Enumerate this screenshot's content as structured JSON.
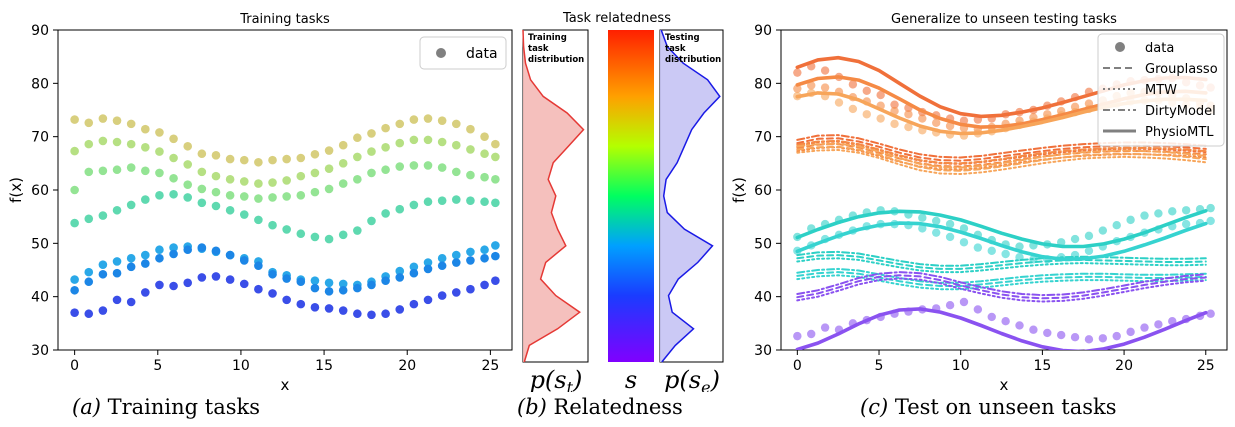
{
  "chart_data": [
    {
      "type": "scatter",
      "title": "Training tasks",
      "xlabel": "x",
      "ylabel": "f(x)",
      "xlim": [
        -1,
        26.3
      ],
      "ylim": [
        30,
        90
      ],
      "xticks": [
        0,
        5,
        10,
        15,
        20,
        25
      ],
      "yticks": [
        30,
        40,
        50,
        60,
        70,
        80,
        90
      ],
      "legend": {
        "entries": [
          "data"
        ],
        "position": "top-right"
      },
      "x": [
        0,
        0.85,
        1.7,
        2.55,
        3.4,
        4.25,
        5.1,
        5.95,
        6.8,
        7.65,
        8.5,
        9.35,
        10.2,
        11.05,
        11.9,
        12.75,
        13.6,
        14.45,
        15.3,
        16.15,
        17.0,
        17.85,
        18.7,
        19.55,
        20.4,
        21.25,
        22.1,
        22.95,
        23.8,
        24.65,
        25.3
      ],
      "series": [
        {
          "color": "#d8cf7e",
          "values": [
            73.2,
            72.6,
            73.4,
            73.0,
            72.4,
            71.4,
            70.8,
            69.6,
            68.2,
            66.8,
            66.5,
            65.8,
            65.6,
            65.2,
            65.6,
            65.8,
            66.0,
            66.7,
            67.4,
            68.4,
            69.8,
            70.6,
            71.6,
            72.4,
            73.2,
            73.4,
            73.0,
            72.4,
            71.4,
            70.0,
            68.6
          ]
        },
        {
          "color": "#b6e083",
          "values": [
            67.3,
            68.6,
            69.2,
            69.0,
            68.6,
            68.0,
            67.2,
            66.0,
            64.8,
            63.4,
            62.6,
            62.0,
            61.6,
            61.2,
            61.4,
            61.8,
            62.6,
            63.2,
            64.0,
            65.0,
            66.2,
            67.2,
            68.0,
            68.8,
            69.4,
            69.4,
            69.0,
            68.4,
            67.6,
            66.8,
            66.2
          ]
        },
        {
          "color": "#94e494",
          "values": [
            60.0,
            63.4,
            63.6,
            63.8,
            64.2,
            63.6,
            63.2,
            62.2,
            61.0,
            60.2,
            59.6,
            59.0,
            58.8,
            58.4,
            58.6,
            58.8,
            59.0,
            59.6,
            60.2,
            61.2,
            62.0,
            63.2,
            63.8,
            64.4,
            64.6,
            64.6,
            64.2,
            63.4,
            62.8,
            62.4,
            62.0
          ]
        },
        {
          "color": "#5fd9b0",
          "values": [
            53.8,
            54.6,
            55.2,
            56.2,
            57.2,
            58.2,
            59.0,
            59.2,
            58.6,
            57.6,
            57.0,
            56.2,
            55.4,
            54.4,
            53.4,
            52.6,
            51.8,
            51.2,
            50.8,
            51.6,
            52.4,
            54.2,
            55.6,
            56.4,
            57.2,
            57.8,
            58.0,
            58.2,
            58.0,
            57.8,
            57.6
          ]
        },
        {
          "color": "#2aa8e8",
          "values": [
            43.2,
            44.6,
            46.0,
            46.6,
            47.2,
            47.8,
            48.8,
            49.2,
            49.4,
            49.0,
            48.4,
            47.8,
            47.2,
            46.6,
            44.6,
            44.0,
            43.2,
            43.0,
            42.6,
            42.4,
            42.2,
            42.8,
            43.8,
            44.8,
            45.6,
            46.4,
            47.2,
            47.8,
            48.4,
            48.8,
            49.6
          ]
        },
        {
          "color": "#1c86e6",
          "values": [
            41.2,
            42.8,
            44.2,
            44.4,
            45.6,
            46.2,
            47.2,
            48.0,
            48.8,
            49.2,
            48.6,
            47.8,
            46.8,
            45.8,
            44.2,
            43.4,
            42.8,
            41.6,
            41.0,
            41.2,
            41.6,
            42.2,
            43.0,
            43.6,
            44.4,
            45.2,
            45.8,
            46.4,
            46.8,
            47.2,
            47.6
          ]
        },
        {
          "color": "#3a4ee8",
          "values": [
            37.0,
            36.8,
            37.4,
            39.4,
            39.0,
            40.8,
            42.2,
            42.0,
            42.6,
            43.6,
            43.8,
            43.2,
            42.4,
            41.4,
            40.6,
            39.4,
            38.6,
            38.0,
            37.8,
            37.4,
            36.8,
            36.6,
            36.8,
            37.6,
            38.6,
            39.4,
            40.2,
            40.8,
            41.4,
            42.2,
            43.0
          ]
        }
      ]
    },
    {
      "type": "area",
      "title": "Task relatedness",
      "panels": [
        {
          "label": "Training task distribution",
          "axis_label": "p(s_t)",
          "color": "#e53935",
          "fill": "#f4b9b6",
          "s": [
            0.0,
            0.05,
            0.1,
            0.15,
            0.2,
            0.25,
            0.3,
            0.35,
            0.4,
            0.45,
            0.5,
            0.55,
            0.6,
            0.65,
            0.7,
            0.75,
            0.8,
            0.85,
            0.9,
            0.95,
            1.0
          ],
          "density": [
            0.02,
            0.1,
            0.55,
            0.9,
            0.52,
            0.28,
            0.36,
            0.68,
            0.55,
            0.45,
            0.52,
            0.4,
            0.48,
            0.72,
            0.96,
            0.7,
            0.32,
            0.12,
            0.04,
            0.01,
            0.0
          ]
        },
        {
          "label": "Testing task distribution",
          "axis_label": "p(s_e)",
          "color": "#1a1ae6",
          "fill": "#c5c3f4",
          "s": [
            0.0,
            0.05,
            0.1,
            0.15,
            0.2,
            0.25,
            0.3,
            0.35,
            0.4,
            0.45,
            0.5,
            0.55,
            0.6,
            0.65,
            0.7,
            0.75,
            0.8,
            0.85,
            0.9,
            0.95,
            1.0
          ],
          "density": [
            0.03,
            0.25,
            0.55,
            0.2,
            0.14,
            0.3,
            0.62,
            0.86,
            0.4,
            0.12,
            0.06,
            0.1,
            0.28,
            0.4,
            0.52,
            0.72,
            0.98,
            0.78,
            0.38,
            0.12,
            0.02
          ]
        }
      ],
      "colorbar_label": "s"
    },
    {
      "type": "line",
      "title": "Generalize to unseen testing tasks",
      "xlabel": "x",
      "ylabel": "f(x)",
      "xlim": [
        -1,
        26.3
      ],
      "ylim": [
        30,
        90
      ],
      "xticks": [
        0,
        5,
        10,
        15,
        20,
        25
      ],
      "yticks": [
        30,
        40,
        50,
        60,
        70,
        80,
        90
      ],
      "legend": {
        "entries": [
          "data",
          "Grouplasso",
          "MTW",
          "DirtyModel",
          "PhysioMTL"
        ],
        "position": "top-right"
      },
      "x": [
        0,
        1.25,
        2.5,
        3.75,
        5,
        6.25,
        7.5,
        8.75,
        10,
        11.25,
        12.5,
        13.75,
        15,
        16.25,
        17.5,
        18.75,
        20,
        21.25,
        22.5,
        23.75,
        25
      ],
      "points_x": [
        0,
        0.85,
        1.7,
        2.55,
        3.4,
        4.25,
        5.1,
        5.95,
        6.8,
        7.65,
        8.5,
        9.35,
        10.2,
        11.05,
        11.9,
        12.75,
        13.6,
        14.45,
        15.3,
        16.15,
        17.0,
        17.85,
        18.7,
        19.55,
        20.4,
        21.25,
        22.1,
        22.95,
        23.8,
        24.65,
        25.3
      ],
      "tasks": [
        {
          "color": "#f0703a",
          "physio": [
            83.0,
            84.4,
            84.8,
            84.1,
            82.4,
            80.0,
            77.6,
            75.6,
            74.3,
            73.8,
            74.0,
            74.6,
            75.4,
            76.4,
            77.5,
            78.6,
            79.7,
            80.5,
            81.0,
            81.1,
            80.7
          ],
          "dirty": [
            69.4,
            70.2,
            70.3,
            69.7,
            68.7,
            67.6,
            66.7,
            66.2,
            66.1,
            66.4,
            66.9,
            67.4,
            67.9,
            68.3,
            68.6,
            68.8,
            68.9,
            68.9,
            68.8,
            68.6,
            68.3
          ],
          "points": [
            82.0,
            83.2,
            82.4,
            81.2,
            79.8,
            78.6,
            77.8,
            76.0,
            75.4,
            74.6,
            74.0,
            73.4,
            73.0,
            73.2,
            73.4,
            74.2,
            74.6,
            75.0,
            75.8,
            76.6,
            77.4,
            78.4,
            79.0,
            79.8,
            80.4,
            80.6,
            80.8,
            81.0,
            80.2,
            79.6,
            79.2
          ]
        },
        {
          "color": "#f58a45",
          "physio": [
            79.7,
            80.9,
            81.2,
            80.6,
            79.1,
            77.1,
            75.0,
            73.4,
            72.3,
            71.8,
            71.9,
            72.4,
            73.2,
            74.1,
            75.1,
            76.1,
            77.1,
            77.9,
            78.4,
            78.5,
            78.2
          ],
          "dirty": [
            68.5,
            69.1,
            69.2,
            68.6,
            67.6,
            66.5,
            65.6,
            65.1,
            65.0,
            65.3,
            65.8,
            66.4,
            66.9,
            67.3,
            67.6,
            67.8,
            67.9,
            67.9,
            67.8,
            67.6,
            67.3
          ],
          "points": [
            79.0,
            79.6,
            79.2,
            78.4,
            77.4,
            76.6,
            75.8,
            74.8,
            74.2,
            73.4,
            72.6,
            72.0,
            71.6,
            71.4,
            71.8,
            72.4,
            73.0,
            73.6,
            74.2,
            74.8,
            75.6,
            76.2,
            76.8,
            77.6,
            78.2,
            78.4,
            78.2,
            77.8,
            77.2,
            76.4,
            75.8
          ]
        },
        {
          "color": "#f7a55a",
          "physio": [
            77.5,
            78.2,
            78.0,
            76.9,
            75.2,
            73.5,
            72.0,
            71.0,
            70.6,
            70.7,
            71.2,
            71.9,
            72.7,
            73.6,
            74.6,
            75.5,
            76.2,
            76.7,
            77.0,
            77.0,
            76.8
          ],
          "dirty": [
            68.2,
            68.6,
            68.7,
            68.2,
            67.2,
            66.0,
            64.9,
            64.3,
            64.2,
            64.5,
            65.0,
            65.6,
            66.2,
            66.7,
            67.1,
            67.3,
            67.4,
            67.3,
            67.1,
            66.8,
            66.4
          ],
          "points": [
            77.6,
            78.2,
            77.6,
            76.4,
            75.2,
            74.2,
            73.4,
            72.4,
            71.8,
            71.2,
            70.8,
            70.4,
            70.2,
            70.6,
            71.0,
            71.6,
            72.2,
            72.8,
            73.4,
            74.0,
            74.6,
            75.2,
            75.8,
            76.2,
            76.6,
            76.8,
            76.8,
            76.4,
            76.0,
            75.6,
            75.0
          ]
        },
        {
          "color": "#2dd0c6",
          "physio": [
            51.1,
            52.6,
            53.9,
            55.0,
            55.7,
            56.0,
            55.9,
            55.3,
            54.4,
            53.2,
            51.9,
            50.8,
            49.9,
            49.4,
            49.4,
            49.9,
            50.8,
            52.0,
            53.4,
            54.8,
            56.1
          ],
          "dirty": [
            47.8,
            48.3,
            48.4,
            48.1,
            47.4,
            46.7,
            46.1,
            45.8,
            45.8,
            46.1,
            46.5,
            46.9,
            47.2,
            47.4,
            47.5,
            47.4,
            47.3,
            47.2,
            47.1,
            47.1,
            47.2
          ],
          "points": [
            51.2,
            52.8,
            53.6,
            54.4,
            55.2,
            55.8,
            56.2,
            56.0,
            55.4,
            54.8,
            54.2,
            53.6,
            52.8,
            51.6,
            50.6,
            49.8,
            49.4,
            49.6,
            49.8,
            50.2,
            50.8,
            51.4,
            52.4,
            53.4,
            54.4,
            55.2,
            55.6,
            56.0,
            56.2,
            56.4,
            56.6
          ]
        },
        {
          "color": "#36d3d0",
          "physio": [
            48.5,
            50.0,
            51.4,
            52.6,
            53.4,
            53.8,
            53.7,
            53.1,
            52.1,
            50.9,
            49.6,
            48.4,
            47.5,
            47.0,
            47.1,
            47.6,
            48.5,
            49.7,
            51.0,
            52.4,
            53.7
          ],
          "dirty": [
            44.5,
            45.0,
            45.2,
            44.9,
            44.2,
            43.5,
            42.9,
            42.6,
            42.6,
            42.9,
            43.3,
            43.7,
            44.0,
            44.2,
            44.3,
            44.3,
            44.2,
            44.1,
            44.1,
            44.2,
            44.3
          ],
          "points": [
            48.6,
            49.6,
            50.8,
            51.6,
            52.4,
            53.2,
            53.6,
            53.6,
            53.4,
            52.8,
            52.0,
            51.2,
            50.2,
            49.2,
            48.6,
            48.0,
            47.4,
            47.0,
            47.0,
            47.4,
            47.8,
            48.6,
            49.4,
            50.4,
            51.2,
            52.0,
            52.6,
            53.2,
            53.6,
            53.8,
            54.2
          ]
        },
        {
          "color": "#8a52f0",
          "physio": [
            30.1,
            31.3,
            33.0,
            34.9,
            36.5,
            37.5,
            37.7,
            37.1,
            36.0,
            34.6,
            33.1,
            31.7,
            30.6,
            29.9,
            29.7,
            30.2,
            31.1,
            32.4,
            33.9,
            35.5,
            37.0
          ],
          "dirty": [
            40.5,
            41.2,
            42.3,
            43.5,
            44.3,
            44.6,
            44.4,
            43.7,
            42.7,
            41.8,
            41.0,
            40.5,
            40.3,
            40.4,
            40.8,
            41.4,
            42.1,
            42.8,
            43.4,
            43.9,
            44.2
          ],
          "points": [
            32.6,
            33.0,
            34.2,
            33.8,
            35.0,
            35.6,
            36.2,
            36.8,
            37.2,
            37.6,
            37.8,
            38.4,
            39.0,
            37.6,
            36.2,
            35.4,
            34.6,
            33.8,
            33.2,
            32.8,
            32.4,
            32.0,
            32.2,
            32.6,
            33.4,
            34.2,
            34.8,
            35.4,
            35.8,
            36.4,
            36.8
          ]
        }
      ]
    }
  ],
  "captions": [
    {
      "tag": "(a)",
      "text": "Training tasks"
    },
    {
      "tag": "(b)",
      "text": "Relatedness"
    },
    {
      "tag": "(c)",
      "text": "Test on unseen tasks"
    }
  ]
}
